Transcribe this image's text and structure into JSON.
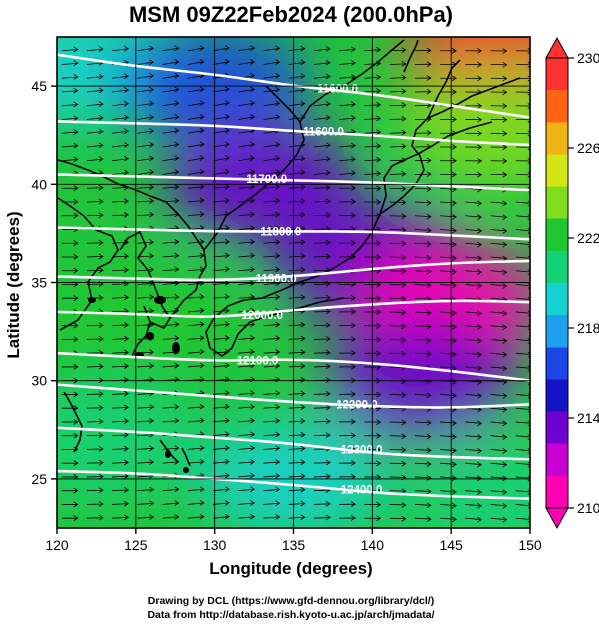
{
  "title": "MSM 09Z22Feb2024 (200.0hPa)",
  "x_axis": {
    "label": "Longitude (degrees)",
    "ticks": [
      "120",
      "125",
      "130",
      "135",
      "140",
      "145",
      "150"
    ]
  },
  "y_axis": {
    "label": "Latitude  (degrees)",
    "ticks": [
      "25",
      "30",
      "35",
      "40",
      "45"
    ]
  },
  "colorbar": {
    "ticks": [
      "210",
      "214",
      "218",
      "222",
      "226",
      "230"
    ],
    "colors": [
      "#ff00b4",
      "#c800d2",
      "#6e00d2",
      "#1414c8",
      "#1e46e6",
      "#1ea0f0",
      "#14d2d2",
      "#14d278",
      "#1ec832",
      "#82dc1e",
      "#d2e614",
      "#f0b414",
      "#ff6414",
      "#ff3232"
    ]
  },
  "credits": {
    "line1": "Drawing by DCL (https://www.gfd-dennou.org/library/dcl/)",
    "line2": "Data from http://database.rish.kyoto-u.ac.jp/arch/jmadata/"
  },
  "chart_data": {
    "type": "heatmap",
    "variable": "temperature (color), geopotential height (contours), wind (vectors)",
    "xlim": [
      120,
      150
    ],
    "ylim": [
      22.5,
      47.5
    ],
    "colorbar_range": [
      210,
      230
    ],
    "contours": [
      {
        "label": "11600.0",
        "lon": [
          120,
          125,
          130,
          135,
          140,
          145,
          150
        ],
        "lat": [
          46.6,
          46.0,
          45.6,
          45.0,
          44.6,
          44.0,
          43.4
        ]
      },
      {
        "label": "11600.0",
        "lon": [
          120,
          125,
          130,
          135,
          140,
          145,
          150
        ],
        "lat": [
          43.2,
          43.1,
          43.0,
          42.7,
          42.5,
          42.2,
          42.0
        ]
      },
      {
        "label": "11700.0",
        "lon": [
          120,
          125,
          130,
          135,
          140,
          145,
          150
        ],
        "lat": [
          40.5,
          40.4,
          40.3,
          40.2,
          40.1,
          39.9,
          39.7
        ]
      },
      {
        "label": "11800.0",
        "lon": [
          120,
          125,
          130,
          135,
          140,
          145,
          150
        ],
        "lat": [
          37.8,
          37.7,
          37.6,
          37.6,
          37.6,
          37.4,
          37.2
        ]
      },
      {
        "label": "11900.0",
        "lon": [
          120,
          125,
          130,
          135,
          140,
          145,
          150
        ],
        "lat": [
          35.3,
          35.2,
          35.1,
          35.3,
          35.7,
          36.0,
          36.1
        ]
      },
      {
        "label": "12000.0",
        "lon": [
          120,
          125,
          130,
          135,
          140,
          145,
          150
        ],
        "lat": [
          33.5,
          33.4,
          33.2,
          33.6,
          33.9,
          34.1,
          34.0
        ]
      },
      {
        "label": "12100.0",
        "lon": [
          120,
          125,
          130,
          135,
          140,
          145,
          150
        ],
        "lat": [
          31.4,
          31.2,
          31.0,
          31.1,
          30.9,
          30.5,
          30.0
        ]
      },
      {
        "label": "12200.0",
        "lon": [
          120,
          125,
          130,
          135,
          140,
          145,
          150
        ],
        "lat": [
          29.8,
          29.5,
          29.2,
          28.9,
          28.7,
          28.6,
          28.8
        ]
      },
      {
        "label": "12300.0",
        "lon": [
          120,
          125,
          130,
          135,
          140,
          145,
          150
        ],
        "lat": [
          27.6,
          27.4,
          27.1,
          26.8,
          26.3,
          26.1,
          26.0
        ]
      },
      {
        "label": "12400.0",
        "lon": [
          120,
          125,
          130,
          135,
          140,
          145,
          150
        ],
        "lat": [
          25.4,
          25.3,
          25.0,
          24.7,
          24.3,
          24.1,
          24.0
        ]
      }
    ],
    "temperature_field": [
      {
        "lon": 122,
        "lat": 46,
        "t": 219
      },
      {
        "lon": 130,
        "lat": 45,
        "t": 216
      },
      {
        "lon": 148,
        "lat": 47,
        "t": 229
      },
      {
        "lon": 133,
        "lat": 40,
        "t": 214
      },
      {
        "lon": 140,
        "lat": 36,
        "t": 213
      },
      {
        "lon": 145,
        "lat": 34,
        "t": 210
      },
      {
        "lon": 143,
        "lat": 30,
        "t": 213
      },
      {
        "lon": 125,
        "lat": 33,
        "t": 222
      },
      {
        "lon": 123,
        "lat": 27,
        "t": 221
      },
      {
        "lon": 135,
        "lat": 25,
        "t": 219
      },
      {
        "lon": 148,
        "lat": 24,
        "t": 221
      },
      {
        "lon": 148,
        "lat": 43,
        "t": 224
      }
    ],
    "wind": "predominantly westerly (west to east) across the domain"
  }
}
